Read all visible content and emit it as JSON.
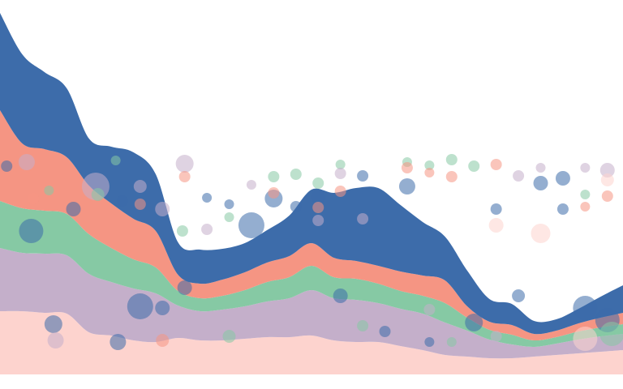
{
  "chart_data": {
    "type": "area",
    "stacked": true,
    "stream": true,
    "axes_visible": false,
    "grid": false,
    "legend": "none",
    "x": [
      0,
      1,
      2,
      3,
      4,
      5,
      6,
      7,
      8,
      9,
      10,
      11,
      12,
      13,
      14,
      15,
      16,
      17,
      18,
      19,
      20,
      21,
      22,
      23,
      24,
      25,
      26,
      27,
      28
    ],
    "series": [
      {
        "color": "#FDD3CE",
        "values": [
          78,
          78,
          76,
          75,
          52,
          48,
          42,
          40,
          45,
          42,
          42,
          44,
          46,
          46,
          48,
          42,
          40,
          40,
          35,
          30,
          24,
          22,
          20,
          20,
          22,
          24,
          26,
          28,
          30
        ]
      },
      {
        "color": "#C4AFCA",
        "values": [
          78,
          72,
          73,
          72,
          72,
          66,
          64,
          60,
          40,
          36,
          38,
          40,
          44,
          48,
          56,
          52,
          52,
          48,
          46,
          45,
          40,
          32,
          23,
          17,
          12,
          14,
          17,
          19,
          20
        ]
      },
      {
        "color": "#86C9A4",
        "values": [
          58,
          55,
          53,
          51,
          49,
          42,
          36,
          32,
          18,
          16,
          17,
          20,
          24,
          26,
          30,
          26,
          26,
          24,
          22,
          22,
          24,
          16,
          12,
          12,
          8,
          8,
          10,
          11,
          12
        ]
      },
      {
        "color": "#F59583",
        "values": [
          112,
          80,
          76,
          70,
          60,
          55,
          50,
          45,
          20,
          18,
          20,
          22,
          24,
          26,
          28,
          24,
          22,
          22,
          24,
          25,
          28,
          14,
          10,
          12,
          8,
          8,
          10,
          12,
          14
        ]
      },
      {
        "color": "#3D6CAA",
        "values": [
          120,
          110,
          95,
          85,
          58,
          70,
          82,
          70,
          40,
          42,
          38,
          36,
          40,
          50,
          66,
          80,
          90,
          96,
          82,
          66,
          54,
          44,
          28,
          26,
          16,
          14,
          18,
          26,
          34
        ]
      }
    ],
    "bubbles": [
      {
        "x": 0.3,
        "y": 205,
        "r": 7,
        "color": "#3D6CAA"
      },
      {
        "x": 0.5,
        "y": 260,
        "r": 6,
        "color": "#86C9A4"
      },
      {
        "x": 1.2,
        "y": 200,
        "r": 10,
        "color": "#C4AFCA"
      },
      {
        "x": 1.5,
        "y": 245,
        "r": 7,
        "color": "#F59583"
      },
      {
        "x": 1.4,
        "y": 285,
        "r": 15,
        "color": "#3D6CAA"
      },
      {
        "x": 2.2,
        "y": 235,
        "r": 6,
        "color": "#86C9A4"
      },
      {
        "x": 2.4,
        "y": 400,
        "r": 11,
        "color": "#3D6CAA"
      },
      {
        "x": 2.5,
        "y": 420,
        "r": 10,
        "color": "#C4AFCA"
      },
      {
        "x": 3.3,
        "y": 258,
        "r": 9,
        "color": "#3D6CAA"
      },
      {
        "x": 4.3,
        "y": 230,
        "r": 17,
        "color": "#C4AFCA"
      },
      {
        "x": 4.4,
        "y": 240,
        "r": 8,
        "color": "#86C9A4"
      },
      {
        "x": 5.2,
        "y": 198,
        "r": 6,
        "color": "#86C9A4"
      },
      {
        "x": 5.5,
        "y": 248,
        "r": 7,
        "color": "#3D6CAA"
      },
      {
        "x": 5.3,
        "y": 422,
        "r": 10,
        "color": "#3D6CAA"
      },
      {
        "x": 6.3,
        "y": 230,
        "r": 8,
        "color": "#C4AFCA"
      },
      {
        "x": 6.3,
        "y": 252,
        "r": 7,
        "color": "#F59583"
      },
      {
        "x": 6.3,
        "y": 378,
        "r": 16,
        "color": "#3D6CAA"
      },
      {
        "x": 7.3,
        "y": 258,
        "r": 9,
        "color": "#C4AFCA"
      },
      {
        "x": 7.3,
        "y": 380,
        "r": 9,
        "color": "#3D6CAA"
      },
      {
        "x": 7.3,
        "y": 420,
        "r": 8,
        "color": "#F59583"
      },
      {
        "x": 8.3,
        "y": 202,
        "r": 11,
        "color": "#C4AFCA"
      },
      {
        "x": 8.3,
        "y": 218,
        "r": 7,
        "color": "#F59583"
      },
      {
        "x": 8.2,
        "y": 285,
        "r": 7,
        "color": "#86C9A4"
      },
      {
        "x": 8.3,
        "y": 355,
        "r": 9,
        "color": "#3D6CAA"
      },
      {
        "x": 9.3,
        "y": 244,
        "r": 6,
        "color": "#3D6CAA"
      },
      {
        "x": 9.3,
        "y": 283,
        "r": 7,
        "color": "#C4AFCA"
      },
      {
        "x": 10.3,
        "y": 252,
        "r": 6,
        "color": "#3D6CAA"
      },
      {
        "x": 10.3,
        "y": 268,
        "r": 6,
        "color": "#86C9A4"
      },
      {
        "x": 10.3,
        "y": 415,
        "r": 8,
        "color": "#86C9A4"
      },
      {
        "x": 11.3,
        "y": 278,
        "r": 16,
        "color": "#3D6CAA"
      },
      {
        "x": 11.3,
        "y": 228,
        "r": 6,
        "color": "#C4AFCA"
      },
      {
        "x": 12.3,
        "y": 218,
        "r": 7,
        "color": "#86C9A4"
      },
      {
        "x": 12.3,
        "y": 245,
        "r": 11,
        "color": "#3D6CAA"
      },
      {
        "x": 12.3,
        "y": 238,
        "r": 7,
        "color": "#F59583"
      },
      {
        "x": 13.3,
        "y": 215,
        "r": 7,
        "color": "#86C9A4"
      },
      {
        "x": 13.3,
        "y": 255,
        "r": 7,
        "color": "#3D6CAA"
      },
      {
        "x": 13.3,
        "y": 380,
        "r": 9,
        "color": "#C4AFCA"
      },
      {
        "x": 14.3,
        "y": 226,
        "r": 7,
        "color": "#86C9A4"
      },
      {
        "x": 14.3,
        "y": 243,
        "r": 9,
        "color": "#3D6CAA"
      },
      {
        "x": 14.3,
        "y": 256,
        "r": 7,
        "color": "#F59583"
      },
      {
        "x": 14.3,
        "y": 272,
        "r": 7,
        "color": "#C4AFCA"
      },
      {
        "x": 15.3,
        "y": 203,
        "r": 6,
        "color": "#86C9A4"
      },
      {
        "x": 15.3,
        "y": 214,
        "r": 7,
        "color": "#C4AFCA"
      },
      {
        "x": 15.3,
        "y": 236,
        "r": 7,
        "color": "#F59583"
      },
      {
        "x": 15.3,
        "y": 365,
        "r": 9,
        "color": "#3D6CAA"
      },
      {
        "x": 16.3,
        "y": 217,
        "r": 7,
        "color": "#3D6CAA"
      },
      {
        "x": 16.3,
        "y": 270,
        "r": 7,
        "color": "#C4AFCA"
      },
      {
        "x": 16.3,
        "y": 402,
        "r": 7,
        "color": "#86C9A4"
      },
      {
        "x": 17.3,
        "y": 409,
        "r": 7,
        "color": "#3D6CAA"
      },
      {
        "x": 18.3,
        "y": 200,
        "r": 6,
        "color": "#86C9A4"
      },
      {
        "x": 18.3,
        "y": 207,
        "r": 7,
        "color": "#F59583"
      },
      {
        "x": 18.3,
        "y": 230,
        "r": 10,
        "color": "#3D6CAA"
      },
      {
        "x": 19.3,
        "y": 204,
        "r": 6,
        "color": "#86C9A4"
      },
      {
        "x": 19.3,
        "y": 213,
        "r": 6,
        "color": "#F59583"
      },
      {
        "x": 19.3,
        "y": 382,
        "r": 7,
        "color": "#C4AFCA"
      },
      {
        "x": 19.3,
        "y": 422,
        "r": 6,
        "color": "#3D6CAA"
      },
      {
        "x": 20.3,
        "y": 197,
        "r": 7,
        "color": "#86C9A4"
      },
      {
        "x": 20.3,
        "y": 218,
        "r": 7,
        "color": "#F59583"
      },
      {
        "x": 20.3,
        "y": 422,
        "r": 6,
        "color": "#86C9A4"
      },
      {
        "x": 21.3,
        "y": 205,
        "r": 7,
        "color": "#86C9A4"
      },
      {
        "x": 21.3,
        "y": 398,
        "r": 11,
        "color": "#3D6CAA"
      },
      {
        "x": 22.3,
        "y": 203,
        "r": 7,
        "color": "#F59583"
      },
      {
        "x": 22.3,
        "y": 258,
        "r": 7,
        "color": "#3D6CAA"
      },
      {
        "x": 22.3,
        "y": 278,
        "r": 9,
        "color": "#FDD3CE"
      },
      {
        "x": 22.3,
        "y": 415,
        "r": 7,
        "color": "#C4AFCA"
      },
      {
        "x": 23.3,
        "y": 217,
        "r": 7,
        "color": "#C4AFCA"
      },
      {
        "x": 23.3,
        "y": 365,
        "r": 8,
        "color": "#3D6CAA"
      },
      {
        "x": 24.3,
        "y": 207,
        "r": 6,
        "color": "#C4AFCA"
      },
      {
        "x": 24.3,
        "y": 226,
        "r": 9,
        "color": "#3D6CAA"
      },
      {
        "x": 24.3,
        "y": 288,
        "r": 12,
        "color": "#FDD3CE"
      },
      {
        "x": 25.3,
        "y": 258,
        "r": 7,
        "color": "#3D6CAA"
      },
      {
        "x": 25.3,
        "y": 220,
        "r": 9,
        "color": "#3D6CAA"
      },
      {
        "x": 26.3,
        "y": 207,
        "r": 6,
        "color": "#C4AFCA"
      },
      {
        "x": 26.3,
        "y": 240,
        "r": 6,
        "color": "#86C9A4"
      },
      {
        "x": 26.3,
        "y": 255,
        "r": 6,
        "color": "#F59583"
      },
      {
        "x": 26.3,
        "y": 380,
        "r": 15,
        "color": "#3D6CAA"
      },
      {
        "x": 26.3,
        "y": 418,
        "r": 15,
        "color": "#FDD3CE"
      },
      {
        "x": 27.3,
        "y": 210,
        "r": 9,
        "color": "#C4AFCA"
      },
      {
        "x": 27.3,
        "y": 222,
        "r": 8,
        "color": "#FDD3CE"
      },
      {
        "x": 27.3,
        "y": 242,
        "r": 7,
        "color": "#F59583"
      },
      {
        "x": 27.3,
        "y": 395,
        "r": 15,
        "color": "#3D6CAA"
      },
      {
        "x": 27.5,
        "y": 412,
        "r": 15,
        "color": "#86C9A4"
      }
    ]
  }
}
